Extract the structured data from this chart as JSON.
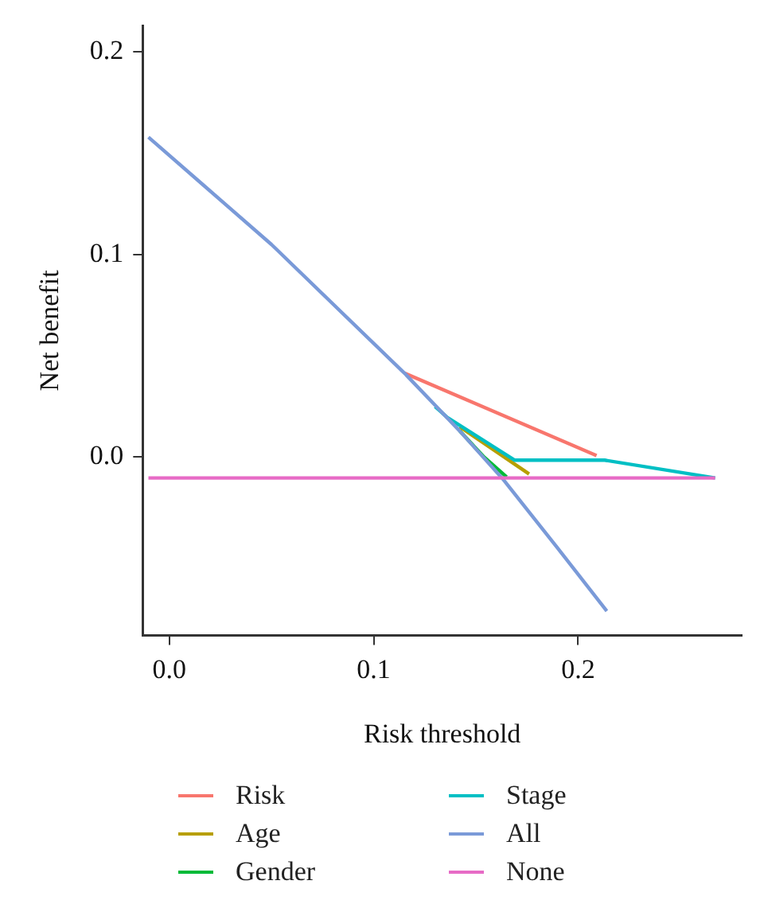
{
  "chart_data": {
    "type": "line",
    "xlabel": "Risk threshold",
    "ylabel": "Net benefit",
    "xlim": [
      -0.013,
      0.28
    ],
    "ylim": [
      -0.088,
      0.213
    ],
    "xticks": [
      {
        "value": 0,
        "label": "0.0"
      },
      0.1,
      0.2
    ],
    "yticks": [
      {
        "value": 0,
        "label": "0.0"
      },
      0.1,
      0.2
    ],
    "grid": false,
    "legend": "bottom",
    "marker": "none",
    "line_style": "solid",
    "series": [
      {
        "name": "Risk",
        "color": "#f8766d",
        "x": [
          0.115,
          0.209
        ],
        "values": [
          0.0415,
          0.0008
        ]
      },
      {
        "name": "Age",
        "color": "#b79f00",
        "x": [
          0.142,
          0.176
        ],
        "values": [
          0.015,
          -0.0083
        ]
      },
      {
        "name": "Gender",
        "color": "#00ba38",
        "x": [
          0.142,
          0.154,
          0.165
        ],
        "values": [
          0.013,
          0.0,
          -0.0098
        ]
      },
      {
        "name": "Stage",
        "color": "#00bfc4",
        "x": [
          0.13,
          0.136,
          0.169,
          0.213,
          0.267
        ],
        "values": [
          0.025,
          0.0196,
          -0.0015,
          -0.0015,
          -0.0103
        ]
      },
      {
        "name": "All",
        "color": "#7a9ad8",
        "x": [
          -0.0102,
          0.05,
          0.115,
          0.142,
          0.163,
          0.19,
          0.214
        ],
        "values": [
          0.158,
          0.105,
          0.0415,
          0.013,
          -0.0106,
          -0.045,
          -0.076
        ]
      },
      {
        "name": "None",
        "color": "#e76bc6",
        "x": [
          -0.0102,
          0.267
        ],
        "values": [
          -0.0103,
          -0.0103
        ]
      }
    ]
  }
}
